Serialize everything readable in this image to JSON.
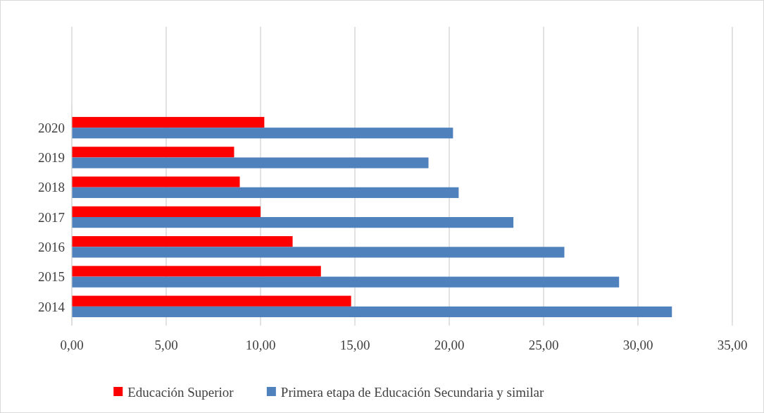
{
  "chart_data": {
    "type": "bar",
    "orientation": "horizontal",
    "categories": [
      "2020",
      "2019",
      "2018",
      "2017",
      "2016",
      "2015",
      "2014"
    ],
    "series": [
      {
        "name": "Educación Superior",
        "color": "#ff0000",
        "values": [
          10.2,
          8.6,
          8.9,
          10.0,
          11.7,
          13.2,
          14.8
        ]
      },
      {
        "name": "Primera etapa de Educación Secundaria y similar",
        "color": "#4f81bd",
        "values": [
          20.2,
          18.9,
          20.5,
          23.4,
          26.1,
          29.0,
          31.8
        ]
      }
    ],
    "xlim": [
      0,
      35
    ],
    "xticks": [
      {
        "value": 0,
        "label": "0,00"
      },
      {
        "value": 5,
        "label": "5,00"
      },
      {
        "value": 10,
        "label": "10,00"
      },
      {
        "value": 15,
        "label": "15,00"
      },
      {
        "value": 20,
        "label": "20,00"
      },
      {
        "value": 25,
        "label": "25,00"
      },
      {
        "value": 30,
        "label": "30,00"
      },
      {
        "value": 35,
        "label": "35,00"
      }
    ],
    "grid": "x",
    "legend": "bottom"
  }
}
